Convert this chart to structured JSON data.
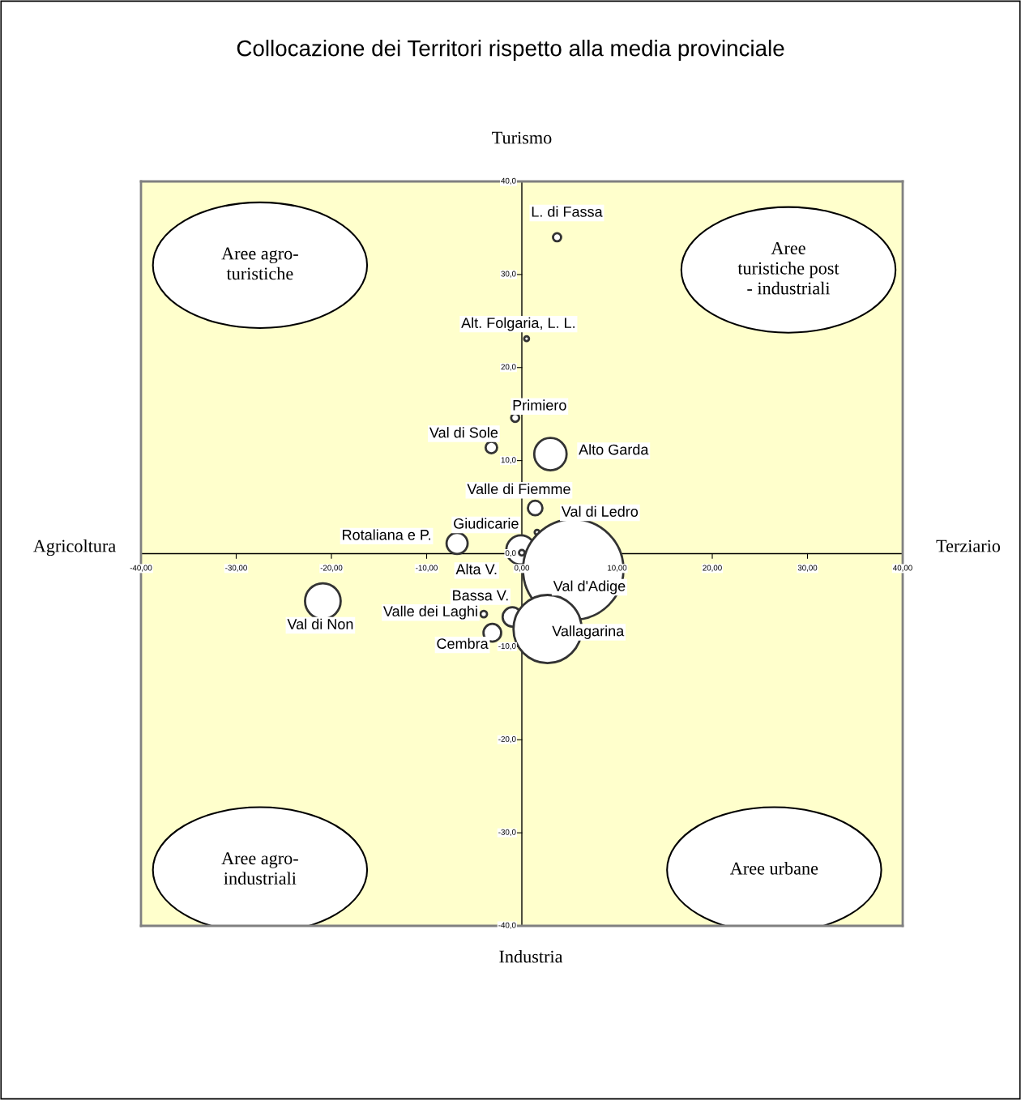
{
  "chart_data": {
    "type": "bubble",
    "title": "Collocazione dei Territori rispetto alla media provinciale",
    "series": [
      {
        "color": "#ffffff",
        "x": [
          3.7,
          0.5,
          -0.7,
          -3.2,
          3.0,
          1.4,
          1.6,
          -6.8,
          -0.1,
          0.0,
          5.4,
          -1.0,
          -4.0,
          -3.1,
          2.7,
          -20.9
        ],
        "values": [
          34.0,
          23.1,
          14.6,
          11.4,
          10.7,
          4.9,
          2.3,
          1.1,
          0.4,
          0.1,
          -1.7,
          -6.8,
          -6.5,
          -8.5,
          -8.1,
          -5.1
        ],
        "sizes": [
          0.0065,
          0.0023,
          0.0065,
          0.013,
          0.104,
          0.021,
          0.0023,
          0.044,
          0.084,
          0.0032,
          1,
          0.037,
          0.0042,
          0.031,
          0.46,
          0.126
        ]
      }
    ],
    "xlim": [
      -40,
      40
    ],
    "xticks": [
      {
        "value": -40,
        "label": "-40,00"
      },
      {
        "value": -30,
        "label": "-30,00"
      },
      {
        "value": -20,
        "label": "-20,00"
      },
      {
        "value": -10,
        "label": "-10,00"
      },
      {
        "value": 0,
        "label": "0,00"
      },
      {
        "value": 10,
        "label": "10,00"
      },
      {
        "value": 20,
        "label": "20,00"
      },
      {
        "value": 30,
        "label": "30,00"
      },
      {
        "value": 40,
        "label": "40,00"
      }
    ],
    "ylim": [
      -40,
      40
    ],
    "yticks": [
      {
        "value": -40,
        "label": "-40,0"
      },
      {
        "value": -30,
        "label": "-30,0"
      },
      {
        "value": -20,
        "label": "-20,0"
      },
      {
        "value": -10,
        "label": "-10,0"
      },
      {
        "value": 0,
        "label": "0,0"
      },
      {
        "value": 10,
        "label": "10,0"
      },
      {
        "value": 20,
        "label": "20,0"
      },
      {
        "value": 30,
        "label": "30,0"
      },
      {
        "value": 40,
        "label": "40,0"
      }
    ],
    "annotations": [
      "Aree agro-\nturistiche",
      "Aree\nturistiche post\n- industriali",
      "Aree agro-\nindustriali",
      "Aree urbane",
      "Turismo",
      "Industria",
      "Agricoltura",
      "Terziario",
      {
        "text": "L. di Fassa",
        "x": 3.7,
        "y": 34.0
      },
      {
        "text": "Alt. Folgaria, L. L.",
        "x": 0.5,
        "y": 23.1
      },
      {
        "text": "Primiero",
        "x": -0.7,
        "y": 14.6
      },
      {
        "text": "Val di Sole",
        "x": -3.2,
        "y": 11.4
      },
      {
        "text": "Alto Garda",
        "x": 3.0,
        "y": 10.7
      },
      {
        "text": "Valle di Fiemme",
        "x": 1.4,
        "y": 4.9
      },
      {
        "text": "Val di Ledro",
        "x": 1.6,
        "y": 2.3
      },
      {
        "text": "Rotaliana e P.",
        "x": -6.8,
        "y": 1.1
      },
      {
        "text": "Giudicarie",
        "x": -0.1,
        "y": 0.4
      },
      {
        "text": "Alta V.",
        "x": 0.0,
        "y": 0.1
      },
      {
        "text": "Val d'Adige",
        "x": 5.4,
        "y": -1.7
      },
      {
        "text": "Bassa V.",
        "x": -1.0,
        "y": -6.8
      },
      {
        "text": "Valle dei Laghi",
        "x": -4.0,
        "y": -6.5
      },
      {
        "text": "Cembra",
        "x": -3.1,
        "y": -8.5
      },
      {
        "text": "Vallagarina",
        "x": 2.7,
        "y": -8.1
      },
      {
        "text": "Val di Non",
        "x": -20.9,
        "y": -5.1
      }
    ],
    "legend": false
  }
}
